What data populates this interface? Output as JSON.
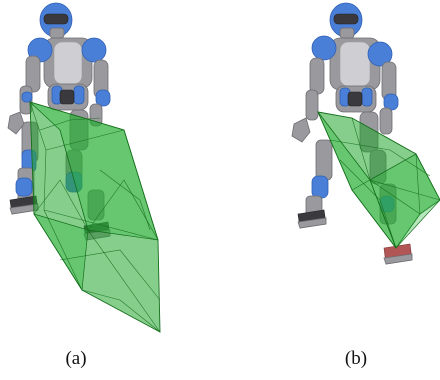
{
  "figure": {
    "panels": [
      {
        "id": "a",
        "caption": "(a)"
      },
      {
        "id": "b",
        "caption": "(b)"
      }
    ]
  },
  "colors": {
    "robot_blue": "#4a7fd8",
    "robot_blue_dark": "#2f5fb4",
    "robot_grey": "#9a9a9e",
    "robot_grey_light": "#cfcfd3",
    "robot_dark": "#3a3a3e",
    "hull_fill": "#22a52e",
    "hull_edge": "#156f1c",
    "foot_red": "#b25555"
  }
}
